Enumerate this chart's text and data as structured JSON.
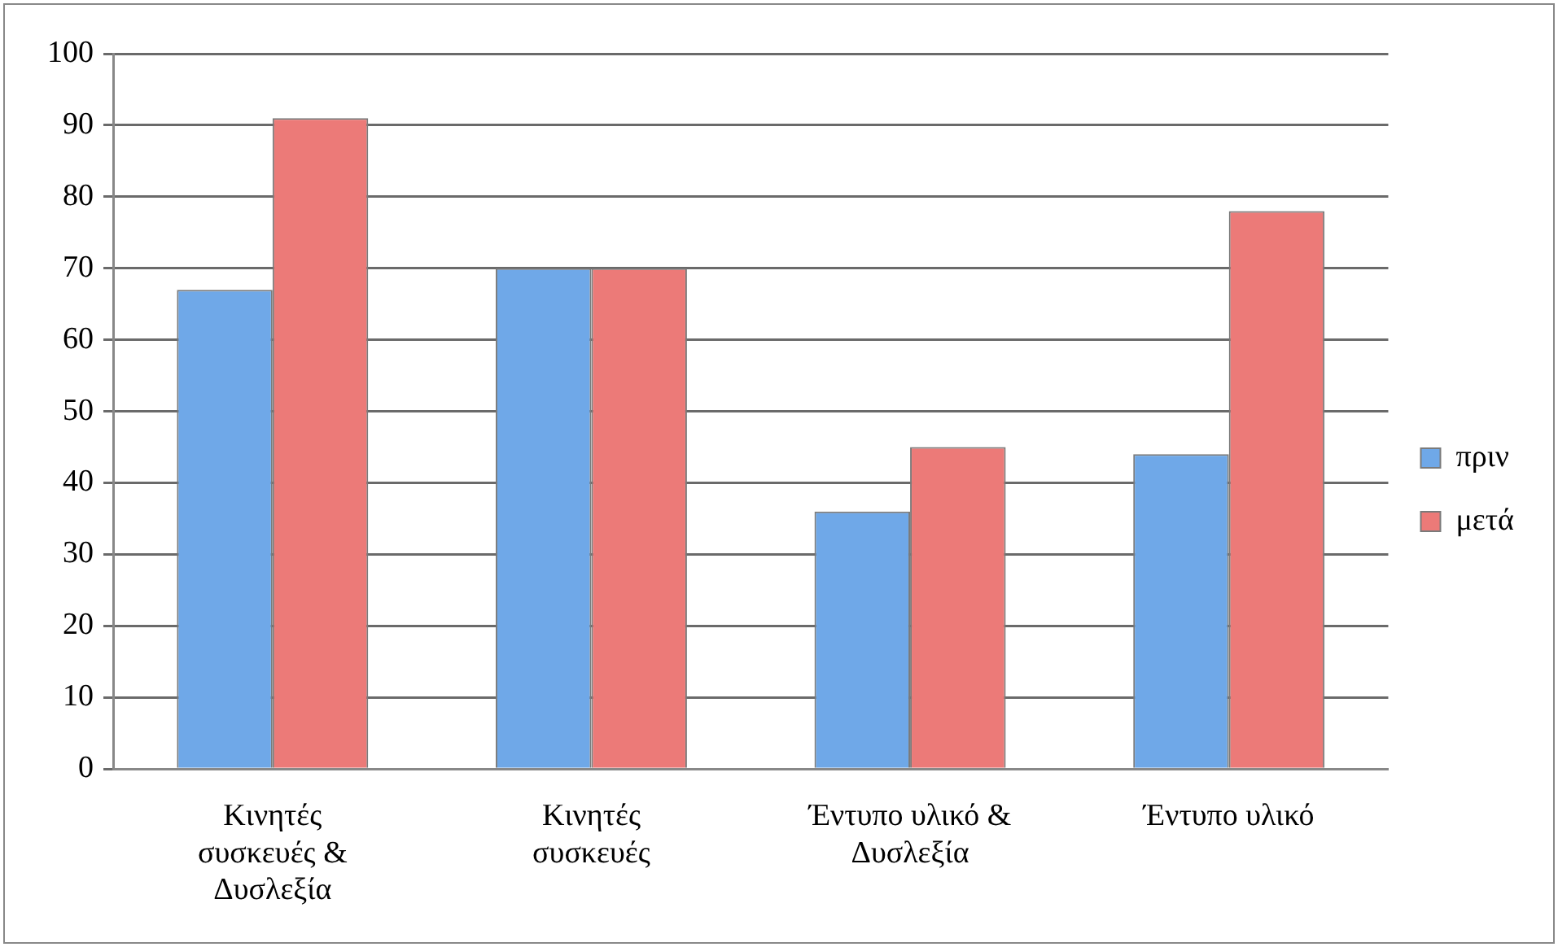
{
  "chart_data": {
    "type": "bar",
    "categories": [
      "Κινητές συσκευές & Δυσλεξία",
      "Κινητές συσκευές",
      "Έντυπο υλικό & Δυσλεξία",
      "Έντυπο υλικό"
    ],
    "series": [
      {
        "name": "πριν",
        "color": "#6fa8e8",
        "values": [
          67,
          70,
          36,
          44
        ]
      },
      {
        "name": "μετά",
        "color": "#ec7a78",
        "values": [
          91,
          70,
          45,
          78
        ]
      }
    ],
    "ylim": [
      0,
      100
    ],
    "yticks": [
      0,
      10,
      20,
      30,
      40,
      50,
      60,
      70,
      80,
      90,
      100
    ],
    "grid": "y",
    "legend": "right"
  }
}
